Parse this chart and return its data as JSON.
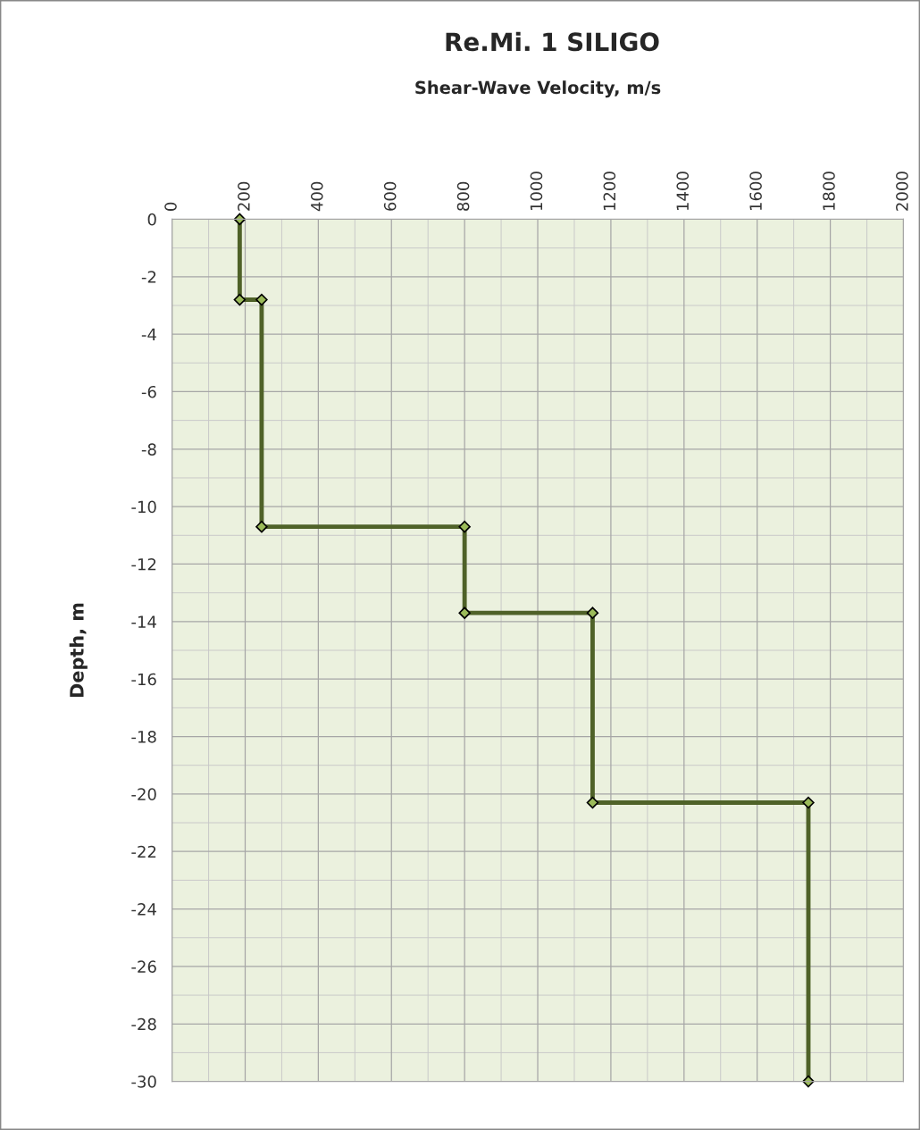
{
  "chart_data": {
    "type": "line",
    "title": "Re.Mi. 1 SILIGO",
    "xlabel": "Shear-Wave Velocity, m/s",
    "ylabel": "Depth, m",
    "series": [
      {
        "color": "#4f6228",
        "x": [
          185,
          185,
          245,
          245,
          800,
          800,
          1150,
          1150,
          1740,
          1740
        ],
        "values": [
          0,
          -2.8,
          -2.8,
          -10.7,
          -10.7,
          -13.7,
          -13.7,
          -20.3,
          -20.3,
          -30
        ]
      }
    ],
    "xlim": [
      0,
      2000
    ],
    "xticks": [
      0,
      200,
      400,
      600,
      800,
      1000,
      1200,
      1400,
      1600,
      1800,
      2000
    ],
    "ylim": [
      -30,
      0
    ],
    "yticks": [
      0,
      -2,
      -4,
      -6,
      -8,
      -10,
      -12,
      -14,
      -16,
      -18,
      -20,
      -22,
      -24,
      -26,
      -28,
      -30
    ],
    "grid": true,
    "marker": "diamond",
    "line_style": "solid",
    "legend": false
  }
}
